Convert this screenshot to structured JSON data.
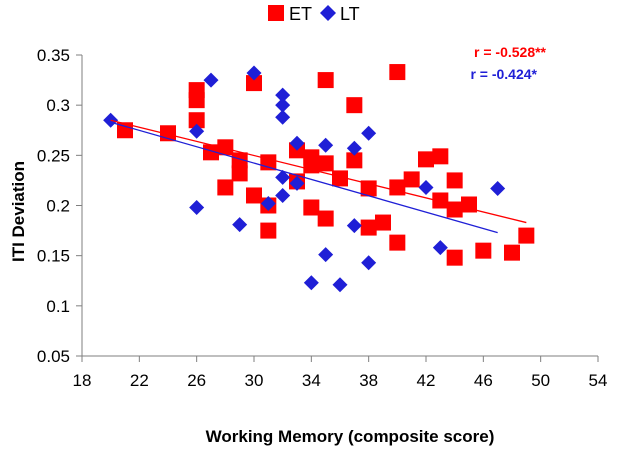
{
  "chart_data": {
    "type": "scatter",
    "title": "",
    "xlabel": "Working Memory (composite score)",
    "ylabel": "ITI Deviation",
    "xlim": [
      18,
      54
    ],
    "ylim": [
      0.05,
      0.35
    ],
    "xticks": [
      18,
      22,
      26,
      30,
      34,
      38,
      42,
      46,
      50,
      54
    ],
    "xtick_labels": [
      "18",
      "22",
      "26",
      "30",
      "34",
      "38",
      "42",
      "46",
      "50",
      "54"
    ],
    "yticks": [
      0.05,
      0.1,
      0.15,
      0.2,
      0.25,
      0.3,
      0.35
    ],
    "ytick_labels": [
      "0.05",
      "0.1",
      "0.15",
      "0.2",
      "0.25",
      "0.3",
      "0.35"
    ],
    "grid": false,
    "legend_position": "top",
    "series": [
      {
        "name": "ET",
        "marker": "square",
        "color": "#ff0000",
        "points": [
          [
            21,
            0.275
          ],
          [
            24,
            0.272
          ],
          [
            26,
            0.315
          ],
          [
            26,
            0.305
          ],
          [
            26,
            0.285
          ],
          [
            27,
            0.253
          ],
          [
            28,
            0.258
          ],
          [
            28,
            0.218
          ],
          [
            29,
            0.245
          ],
          [
            29,
            0.232
          ],
          [
            30,
            0.322
          ],
          [
            30,
            0.21
          ],
          [
            31,
            0.243
          ],
          [
            31,
            0.2
          ],
          [
            31,
            0.175
          ],
          [
            33,
            0.255
          ],
          [
            33,
            0.224
          ],
          [
            34,
            0.248
          ],
          [
            34,
            0.24
          ],
          [
            34,
            0.198
          ],
          [
            35,
            0.325
          ],
          [
            35,
            0.242
          ],
          [
            35,
            0.187
          ],
          [
            36,
            0.227
          ],
          [
            37,
            0.3
          ],
          [
            37,
            0.245
          ],
          [
            38,
            0.217
          ],
          [
            38,
            0.178
          ],
          [
            39,
            0.183
          ],
          [
            40,
            0.333
          ],
          [
            40,
            0.218
          ],
          [
            40,
            0.163
          ],
          [
            41,
            0.226
          ],
          [
            42,
            0.246
          ],
          [
            43,
            0.249
          ],
          [
            43,
            0.205
          ],
          [
            44,
            0.225
          ],
          [
            44,
            0.196
          ],
          [
            44,
            0.148
          ],
          [
            45,
            0.201
          ],
          [
            46,
            0.155
          ],
          [
            48,
            0.153
          ],
          [
            49,
            0.17
          ]
        ],
        "trendline": {
          "x": [
            20,
            49
          ],
          "y": [
            0.285,
            0.183
          ]
        }
      },
      {
        "name": "LT",
        "marker": "diamond",
        "color": "#1f1fd6",
        "points": [
          [
            20,
            0.285
          ],
          [
            26,
            0.274
          ],
          [
            26,
            0.198
          ],
          [
            27,
            0.325
          ],
          [
            29,
            0.181
          ],
          [
            30,
            0.332
          ],
          [
            31,
            0.202
          ],
          [
            32,
            0.31
          ],
          [
            32,
            0.3
          ],
          [
            32,
            0.288
          ],
          [
            32,
            0.228
          ],
          [
            32,
            0.21
          ],
          [
            33,
            0.262
          ],
          [
            33,
            0.222
          ],
          [
            34,
            0.123
          ],
          [
            35,
            0.26
          ],
          [
            35,
            0.151
          ],
          [
            36,
            0.121
          ],
          [
            37,
            0.257
          ],
          [
            37,
            0.18
          ],
          [
            38,
            0.272
          ],
          [
            38,
            0.143
          ],
          [
            42,
            0.218
          ],
          [
            43,
            0.158
          ],
          [
            47,
            0.217
          ]
        ],
        "trendline": {
          "x": [
            20,
            47
          ],
          "y": [
            0.283,
            0.173
          ]
        }
      }
    ],
    "annotations": [
      {
        "text": "r = -0.528**",
        "color": "#ff0000",
        "series": "ET"
      },
      {
        "text": "r = -0.424*",
        "color": "#1f1fd6",
        "series": "LT"
      }
    ]
  }
}
